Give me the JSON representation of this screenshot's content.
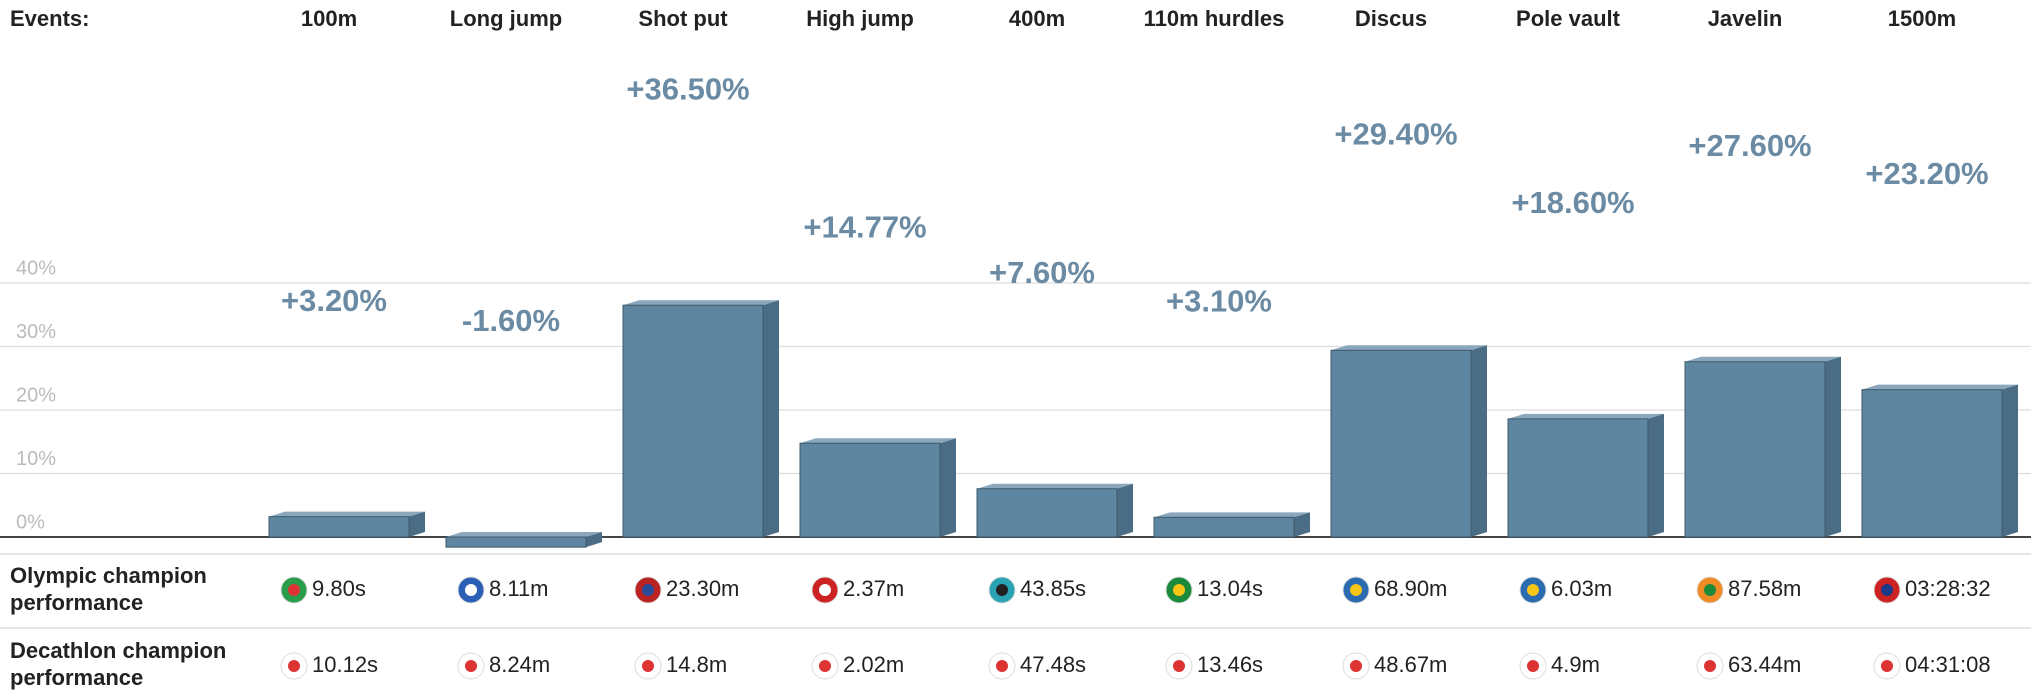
{
  "chart_data": {
    "type": "bar",
    "xlabel": "Events:",
    "categories": [
      "100m",
      "Long jump",
      "Shot put",
      "High jump",
      "400m",
      "110m hurdles",
      "Discus",
      "Pole vault",
      "Javelin",
      "1500m"
    ],
    "values": [
      3.2,
      -1.6,
      36.5,
      14.77,
      7.6,
      3.1,
      29.4,
      18.6,
      27.6,
      23.2
    ],
    "value_labels": [
      "+3.20%",
      "-1.60%",
      "+36.50%",
      "+14.77%",
      "+7.60%",
      "+3.10%",
      "+29.40%",
      "+18.60%",
      "+27.60%",
      "+23.20%"
    ],
    "color": "#5f86a0",
    "ylim": [
      -3,
      55
    ],
    "yticks": [
      {
        "value": 0,
        "label": "0%"
      },
      {
        "value": 10,
        "label": "10%"
      },
      {
        "value": 20,
        "label": "20%"
      },
      {
        "value": 30,
        "label": "30%"
      },
      {
        "value": 40,
        "label": "40%"
      }
    ],
    "grid": true
  },
  "table": {
    "row_labels": [
      "Olympic champion performance",
      "Decathlon champion performance"
    ],
    "rows": [
      [
        "9.80s",
        "8.11m",
        "23.30m",
        "2.37m",
        "43.85s",
        "13.04s",
        "68.90m",
        "6.03m",
        "87.58m",
        "03:28:32"
      ],
      [
        "10.12s",
        "8.24m",
        "14.8m",
        "2.02m",
        "47.48s",
        "13.46s",
        "48.67m",
        "4.9m",
        "63.44m",
        "04:31:08"
      ]
    ]
  }
}
